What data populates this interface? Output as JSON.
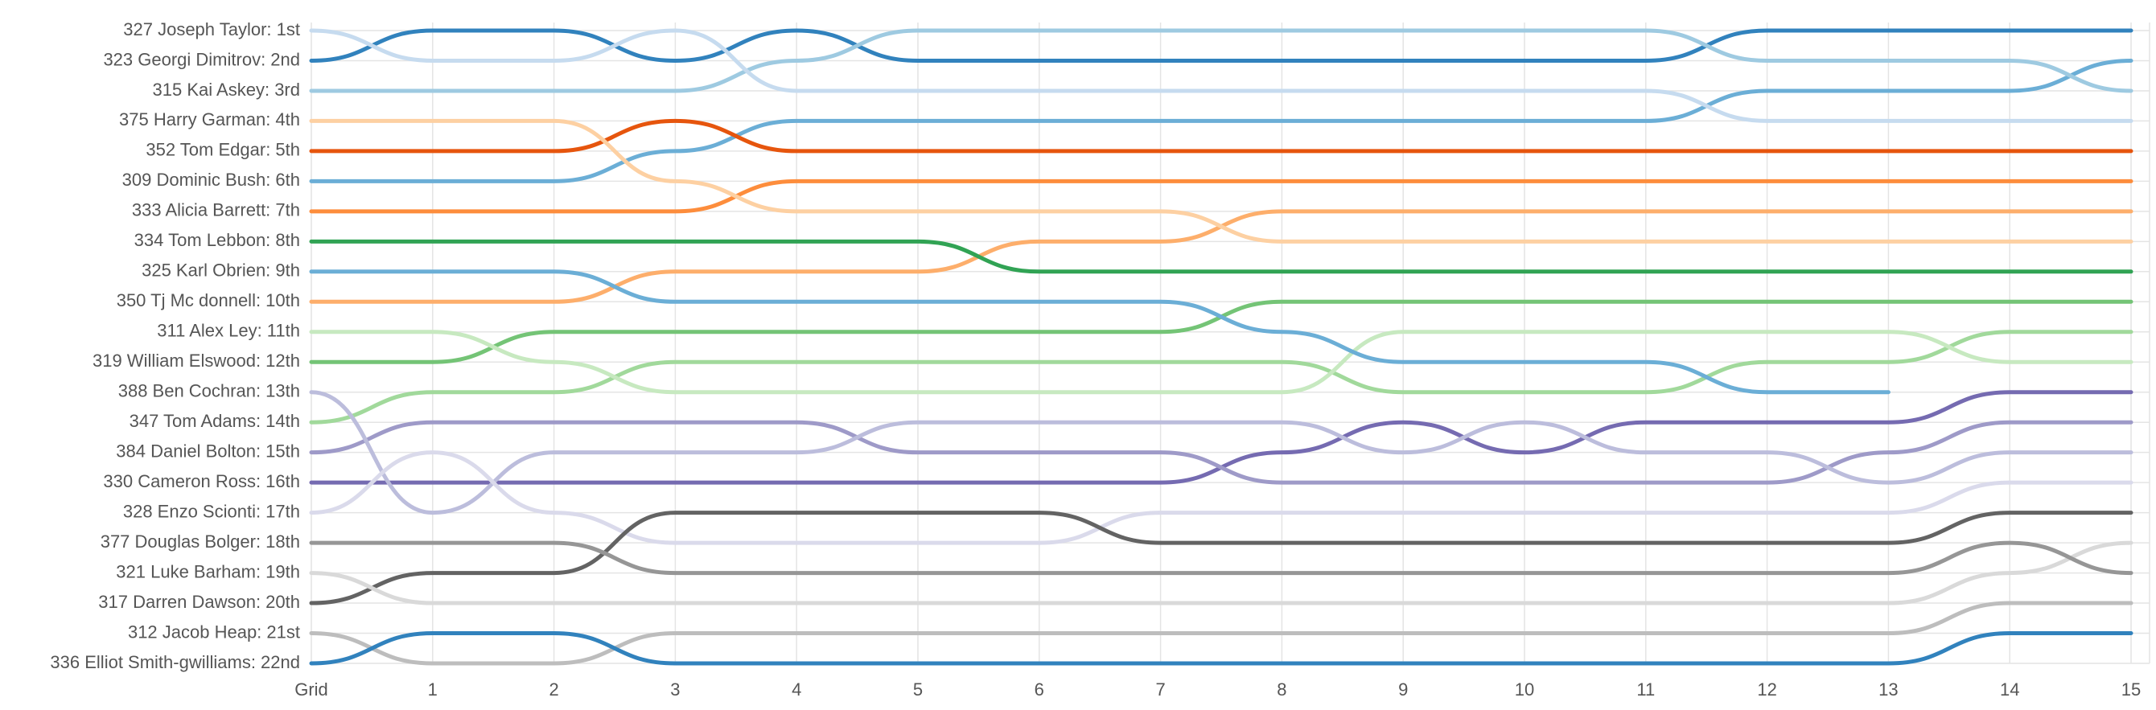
{
  "chart_data": {
    "type": "bump",
    "categories": [
      "Grid",
      "1",
      "2",
      "3",
      "4",
      "5",
      "6",
      "7",
      "8",
      "9",
      "10",
      "11",
      "12",
      "13",
      "14",
      "15"
    ],
    "ylim": [
      22,
      1
    ],
    "yticks": [
      1,
      2,
      3,
      4,
      5,
      6,
      7,
      8,
      9,
      10,
      11,
      12,
      13,
      14,
      15,
      16,
      17,
      18,
      19,
      20,
      21,
      22
    ],
    "grid": true,
    "series": [
      {
        "name": "327 Joseph Taylor: 1st",
        "color": "#3182bd",
        "values": [
          2,
          1,
          1,
          2,
          1,
          2,
          2,
          2,
          2,
          2,
          2,
          2,
          1,
          1,
          1,
          1
        ]
      },
      {
        "name": "323 Georgi Dimitrov: 2nd",
        "color": "#6baed6",
        "values": [
          6,
          6,
          6,
          5,
          4,
          4,
          4,
          4,
          4,
          4,
          4,
          4,
          3,
          3,
          3,
          2
        ]
      },
      {
        "name": "315 Kai Askey: 3rd",
        "color": "#9ecae1",
        "values": [
          3,
          3,
          3,
          3,
          2,
          1,
          1,
          1,
          1,
          1,
          1,
          1,
          2,
          2,
          2,
          3
        ]
      },
      {
        "name": "375 Harry Garman: 4th",
        "color": "#c6dbef",
        "values": [
          1,
          2,
          2,
          1,
          3,
          3,
          3,
          3,
          3,
          3,
          3,
          3,
          4,
          4,
          4,
          4
        ]
      },
      {
        "name": "352 Tom Edgar: 5th",
        "color": "#e6550d",
        "values": [
          5,
          5,
          5,
          4,
          5,
          5,
          5,
          5,
          5,
          5,
          5,
          5,
          5,
          5,
          5,
          5
        ]
      },
      {
        "name": "309 Dominic Bush: 6th",
        "color": "#fd8d3c",
        "values": [
          7,
          7,
          7,
          7,
          6,
          6,
          6,
          6,
          6,
          6,
          6,
          6,
          6,
          6,
          6,
          6
        ]
      },
      {
        "name": "333 Alicia Barrett: 7th",
        "color": "#fdae6b",
        "values": [
          10,
          10,
          10,
          9,
          9,
          9,
          8,
          8,
          7,
          7,
          7,
          7,
          7,
          7,
          7,
          7
        ]
      },
      {
        "name": "334 Tom Lebbon: 8th",
        "color": "#fdd0a2",
        "values": [
          4,
          4,
          4,
          6,
          7,
          7,
          7,
          7,
          8,
          8,
          8,
          8,
          8,
          8,
          8,
          8
        ]
      },
      {
        "name": "325 Karl Obrien: 9th",
        "color": "#31a354",
        "values": [
          8,
          8,
          8,
          8,
          8,
          8,
          9,
          9,
          9,
          9,
          9,
          9,
          9,
          9,
          9,
          9
        ]
      },
      {
        "name": "350 Tj Mc donnell: 10th",
        "color": "#74c476",
        "values": [
          12,
          12,
          11,
          11,
          11,
          11,
          11,
          11,
          10,
          10,
          10,
          10,
          10,
          10,
          10,
          10
        ]
      },
      {
        "name": "311 Alex Ley: 11th",
        "color": "#a1d99b",
        "values": [
          14,
          13,
          13,
          12,
          12,
          12,
          12,
          12,
          12,
          13,
          13,
          13,
          12,
          12,
          11,
          11
        ]
      },
      {
        "name": "319 William Elswood: 12th",
        "color": "#c7e9c0",
        "values": [
          11,
          11,
          12,
          13,
          13,
          13,
          13,
          13,
          13,
          11,
          11,
          11,
          11,
          11,
          12,
          12
        ]
      },
      {
        "name": "388 Ben Cochran: 13th",
        "color": "#756bb1",
        "values": [
          16,
          16,
          16,
          16,
          16,
          16,
          16,
          16,
          15,
          14,
          15,
          14,
          14,
          14,
          13,
          13
        ]
      },
      {
        "name": "347 Tom Adams: 14th",
        "color": "#9e9ac8",
        "values": [
          15,
          14,
          14,
          14,
          14,
          15,
          15,
          15,
          16,
          16,
          16,
          16,
          16,
          15,
          14,
          14
        ]
      },
      {
        "name": "384 Daniel Bolton: 15th",
        "color": "#bcbddc",
        "values": [
          13,
          17,
          15,
          15,
          15,
          14,
          14,
          14,
          14,
          15,
          14,
          15,
          15,
          16,
          15,
          15
        ]
      },
      {
        "name": "330 Cameron Ross: 16th",
        "color": "#dadaeb",
        "values": [
          17,
          15,
          17,
          18,
          18,
          18,
          18,
          17,
          17,
          17,
          17,
          17,
          17,
          17,
          16,
          16
        ]
      },
      {
        "name": "328 Enzo Scionti: 17th",
        "color": "#636363",
        "values": [
          20,
          19,
          19,
          17,
          17,
          17,
          17,
          18,
          18,
          18,
          18,
          18,
          18,
          18,
          17,
          17
        ]
      },
      {
        "name": "377 Douglas Bolger: 18th",
        "color": "#d9d9d9",
        "values": [
          19,
          20,
          20,
          20,
          20,
          20,
          20,
          20,
          20,
          20,
          20,
          20,
          20,
          20,
          19,
          18
        ]
      },
      {
        "name": "321 Luke Barham: 19th",
        "color": "#969696",
        "values": [
          18,
          18,
          18,
          19,
          19,
          19,
          19,
          19,
          19,
          19,
          19,
          19,
          19,
          19,
          18,
          19
        ]
      },
      {
        "name": "317 Darren Dawson: 20th",
        "color": "#bdbdbd",
        "values": [
          21,
          22,
          22,
          21,
          21,
          21,
          21,
          21,
          21,
          21,
          21,
          21,
          21,
          21,
          20,
          20
        ]
      },
      {
        "name": "312 Jacob Heap: 21st",
        "color": "#3182bd",
        "values": [
          22,
          21,
          21,
          22,
          22,
          22,
          22,
          22,
          22,
          22,
          22,
          22,
          22,
          22,
          21,
          21
        ]
      },
      {
        "name": "336 Elliot Smith-gwilliams: 22nd",
        "color": "#6baed6",
        "values": [
          9,
          9,
          9,
          10,
          10,
          10,
          10,
          10,
          11,
          12,
          12,
          12,
          13,
          13,
          null,
          null
        ]
      }
    ]
  }
}
